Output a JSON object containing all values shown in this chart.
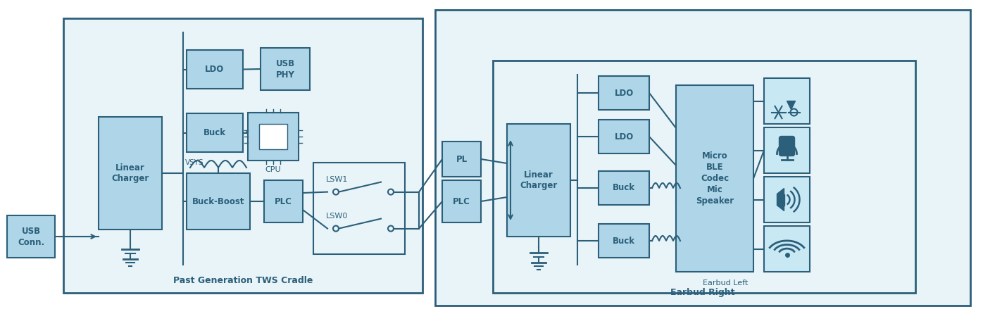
{
  "bg_color": "#e8f4f8",
  "box_fill": "#aed6e8",
  "box_edge": "#2c5f7a",
  "box_fill_dark": "#7fbfd8",
  "icon_bg": "#c8e8f4",
  "text_color": "#1a1a2e",
  "figsize": [
    13.96,
    4.46
  ],
  "dpi": 100,
  "cradle_label": "Past Generation TWS Cradle",
  "earbud_right_label": "Earbud Right",
  "earbud_left_label": "Earbud Left",
  "usb_label": "USB\nConn.",
  "linear_charger_label": "Linear\nCharger",
  "buck_boost_label": "Buck-Boost",
  "plc_label1": "PLC",
  "ldo_label1": "LDO",
  "buck_label1": "Buck",
  "cpu_label": "CPU",
  "usb_phy_label": "USB\nPHY",
  "lsw0_label": "LSW0",
  "lsw1_label": "LSW1",
  "plc_label2": "PLC",
  "linear_charger_label2": "Linear\nCharger",
  "buck_label2a": "Buck",
  "buck_label2b": "Buck",
  "ldo_label2a": "LDO",
  "ldo_label2b": "LDO",
  "micro_ble_label": "Micro\nBLE\nCodec\nMic\nSpeaker",
  "vsys_label": "VSYS"
}
